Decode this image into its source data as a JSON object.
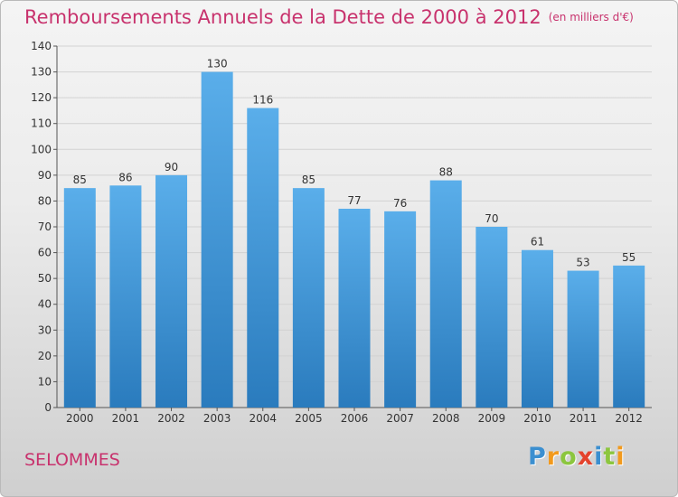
{
  "header": {
    "title": "Remboursements Annuels de la Dette de 2000 à 2012",
    "unit": "(en milliers d'€)"
  },
  "commune": "SELOMMES",
  "logo": {
    "text": "Proxiti",
    "letters": [
      {
        "ch": "P",
        "color": "#3b8fd0"
      },
      {
        "ch": "r",
        "color": "#f29a1d"
      },
      {
        "ch": "o",
        "color": "#8cc63f"
      },
      {
        "ch": "x",
        "color": "#e4432d"
      },
      {
        "ch": "i",
        "color": "#3b8fd0"
      },
      {
        "ch": "t",
        "color": "#8cc63f"
      },
      {
        "ch": "i",
        "color": "#f29a1d"
      }
    ]
  },
  "chart_data": {
    "type": "bar",
    "categories": [
      "2000",
      "2001",
      "2002",
      "2003",
      "2004",
      "2005",
      "2006",
      "2007",
      "2008",
      "2009",
      "2010",
      "2011",
      "2012"
    ],
    "values": [
      85,
      86,
      90,
      130,
      116,
      85,
      77,
      76,
      88,
      70,
      61,
      53,
      55
    ],
    "ylim": [
      0,
      140
    ],
    "yticks": [
      0,
      10,
      20,
      30,
      40,
      50,
      60,
      70,
      80,
      90,
      100,
      110,
      120,
      130,
      140
    ],
    "grid": true,
    "bar_color_top": "#5aaeea",
    "bar_color_bottom": "#2a7bbd",
    "title_color": "#c8326d"
  }
}
